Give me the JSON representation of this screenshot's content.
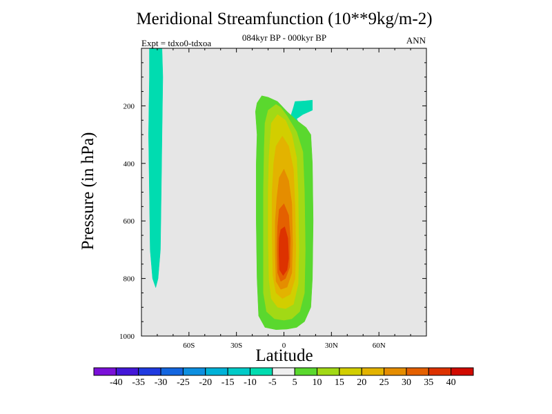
{
  "chart_data": {
    "type": "contourf",
    "title": "Meridional Streamfunction (10**9kg/m-2)",
    "subtitle": "084kyr BP - 000kyr BP",
    "expt": "Expt = tdxo0-tdxoa",
    "season": "ANN",
    "xlabel": "Latitude",
    "ylabel": "Pressure (in hPa)",
    "xlim": [
      -90,
      90
    ],
    "ylim": [
      0,
      1000
    ],
    "y_reversed": true,
    "x_ticks": [
      -60,
      -30,
      0,
      30,
      60
    ],
    "x_tick_labels": [
      "60S",
      "30S",
      "0",
      "30N",
      "60N"
    ],
    "y_ticks": [
      200,
      400,
      600,
      800,
      1000
    ],
    "y_tick_labels": [
      "200",
      "400",
      "600",
      "800",
      "1000"
    ],
    "background": "#e6e6e6",
    "colorbar": {
      "labels": [
        "-40",
        "-35",
        "-30",
        "-25",
        "-20",
        "-15",
        "-10",
        "-5",
        "5",
        "10",
        "15",
        "20",
        "25",
        "30",
        "35",
        "40"
      ],
      "colors": [
        "#7a10d8",
        "#4317d8",
        "#1f3ae0",
        "#1466e0",
        "#0d8fe0",
        "#00b2d8",
        "#00cbc8",
        "#00dcb0",
        "#efefef",
        "#5ad82e",
        "#a2d915",
        "#d2ce00",
        "#e3b300",
        "#e58d00",
        "#e46000",
        "#dd3200",
        "#d10a00"
      ]
    },
    "contours": [
      {
        "level": "-10 to -5",
        "color": "#00dcb0",
        "points": [
          [
            -85,
            0
          ],
          [
            -77,
            0
          ],
          [
            -76.5,
            100
          ],
          [
            -77,
            300
          ],
          [
            -77.5,
            500
          ],
          [
            -78,
            700
          ],
          [
            -79.5,
            800
          ],
          [
            -81,
            832
          ],
          [
            -83,
            800
          ],
          [
            -84.5,
            700
          ],
          [
            -85,
            500
          ],
          [
            -85.5,
            300
          ],
          [
            -85,
            100
          ]
        ]
      },
      {
        "level": "-10 to -5",
        "color": "#00dcb0",
        "points": [
          [
            7,
            185
          ],
          [
            13,
            183
          ],
          [
            18,
            180
          ],
          [
            18,
            215
          ],
          [
            12,
            230
          ],
          [
            8,
            245
          ],
          [
            10,
            265
          ],
          [
            6,
            270
          ],
          [
            4,
            240
          ],
          [
            6,
            205
          ]
        ]
      },
      {
        "level": "5 to 10",
        "color": "#5ad82e",
        "points": [
          [
            -17,
            190
          ],
          [
            -14,
            165
          ],
          [
            -10,
            170
          ],
          [
            -4,
            185
          ],
          [
            2,
            220
          ],
          [
            8,
            250
          ],
          [
            14,
            275
          ],
          [
            17,
            300
          ],
          [
            18,
            400
          ],
          [
            18.5,
            600
          ],
          [
            18,
            800
          ],
          [
            17,
            900
          ],
          [
            13,
            950
          ],
          [
            8,
            970
          ],
          [
            2,
            976
          ],
          [
            -5,
            978
          ],
          [
            -12,
            970
          ],
          [
            -16,
            930
          ],
          [
            -17,
            800
          ],
          [
            -17.5,
            600
          ],
          [
            -17.5,
            400
          ],
          [
            -17,
            300
          ],
          [
            -18,
            220
          ]
        ]
      },
      {
        "level": "10 to 15",
        "color": "#a2d915",
        "points": [
          [
            -10,
            215
          ],
          [
            -5,
            195
          ],
          [
            -2,
            205
          ],
          [
            2,
            235
          ],
          [
            8,
            290
          ],
          [
            12,
            360
          ],
          [
            13,
            500
          ],
          [
            13.5,
            700
          ],
          [
            13,
            850
          ],
          [
            10,
            915
          ],
          [
            5,
            940
          ],
          [
            0,
            945
          ],
          [
            -6,
            940
          ],
          [
            -11,
            915
          ],
          [
            -13,
            850
          ],
          [
            -13,
            700
          ],
          [
            -13,
            500
          ],
          [
            -12.5,
            350
          ],
          [
            -12,
            260
          ]
        ]
      },
      {
        "level": "15 to 20",
        "color": "#d2ce00",
        "points": [
          [
            -8,
            260
          ],
          [
            -4,
            230
          ],
          [
            1,
            250
          ],
          [
            5,
            300
          ],
          [
            8,
            380
          ],
          [
            9,
            500
          ],
          [
            9.5,
            700
          ],
          [
            9,
            820
          ],
          [
            6,
            890
          ],
          [
            1,
            905
          ],
          [
            -4,
            900
          ],
          [
            -8,
            870
          ],
          [
            -9.5,
            800
          ],
          [
            -10,
            650
          ],
          [
            -10,
            500
          ],
          [
            -9.5,
            380
          ]
        ]
      },
      {
        "level": "20 to 25",
        "color": "#e3b300",
        "points": [
          [
            -5,
            340
          ],
          [
            -1,
            305
          ],
          [
            3,
            340
          ],
          [
            6,
            420
          ],
          [
            7,
            550
          ],
          [
            7.5,
            700
          ],
          [
            7,
            800
          ],
          [
            4,
            855
          ],
          [
            -1,
            870
          ],
          [
            -5,
            850
          ],
          [
            -7,
            790
          ],
          [
            -7.5,
            650
          ],
          [
            -7.5,
            500
          ],
          [
            -6.5,
            400
          ]
        ]
      },
      {
        "level": "25 to 30",
        "color": "#e58d00",
        "points": [
          [
            -3,
            450
          ],
          [
            0,
            420
          ],
          [
            3,
            460
          ],
          [
            5,
            540
          ],
          [
            5.5,
            680
          ],
          [
            5,
            780
          ],
          [
            2,
            830
          ],
          [
            -2,
            838
          ],
          [
            -5,
            810
          ],
          [
            -5.5,
            720
          ],
          [
            -5.5,
            600
          ],
          [
            -4.5,
            520
          ]
        ]
      },
      {
        "level": "30 to 35",
        "color": "#e46000",
        "points": [
          [
            -3,
            560
          ],
          [
            0,
            540
          ],
          [
            3,
            580
          ],
          [
            4,
            660
          ],
          [
            3.7,
            760
          ],
          [
            1,
            800
          ],
          [
            -2,
            810
          ],
          [
            -4,
            780
          ],
          [
            -4.3,
            700
          ],
          [
            -4,
            620
          ]
        ]
      },
      {
        "level": "35 to 40",
        "color": "#dd3200",
        "points": [
          [
            -2,
            630
          ],
          [
            0.5,
            620
          ],
          [
            2.5,
            660
          ],
          [
            3,
            730
          ],
          [
            2,
            770
          ],
          [
            -0.5,
            790
          ],
          [
            -2.8,
            770
          ],
          [
            -3.2,
            710
          ],
          [
            -3,
            660
          ]
        ]
      }
    ]
  }
}
